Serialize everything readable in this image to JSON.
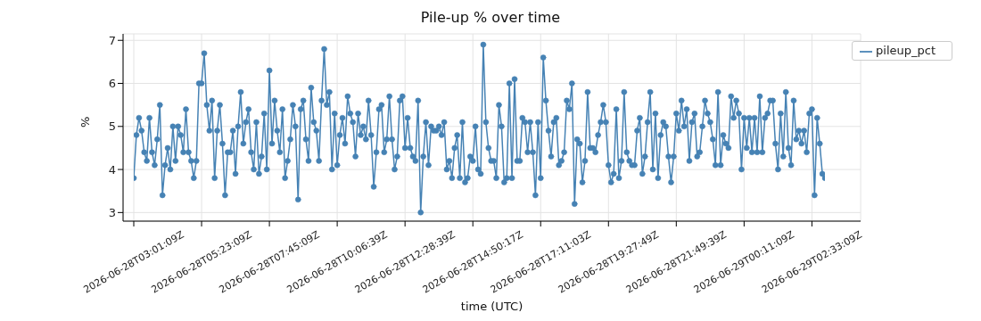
{
  "chart_data": {
    "type": "line",
    "title": "Pile-up % over time",
    "xlabel": "time (UTC)",
    "ylabel": "%",
    "categories": [
      "2026-06-28T03:01:09Z",
      null,
      null,
      null,
      null,
      null,
      null,
      null,
      null,
      null,
      null,
      null,
      null,
      null,
      null,
      null,
      null,
      null,
      null,
      null,
      null,
      null,
      null,
      null,
      null,
      null,
      "2026-06-28T05:23:09Z",
      null,
      null,
      null,
      null,
      null,
      null,
      null,
      null,
      null,
      null,
      null,
      null,
      null,
      null,
      null,
      null,
      null,
      null,
      null,
      null,
      null,
      null,
      null,
      null,
      null,
      "2026-06-28T07:45:09Z",
      null,
      null,
      null,
      null,
      null,
      null,
      null,
      null,
      null,
      null,
      null,
      null,
      null,
      null,
      null,
      null,
      null,
      null,
      null,
      null,
      null,
      null,
      null,
      null,
      null,
      "2026-06-28T10:06:39Z",
      null,
      null,
      null,
      null,
      null,
      null,
      null,
      null,
      null,
      null,
      null,
      null,
      null,
      null,
      null,
      null,
      null,
      null,
      null,
      null,
      null,
      null,
      null,
      null,
      null,
      "2026-06-28T12:28:39Z",
      null,
      null,
      null,
      null,
      null,
      null,
      null,
      null,
      null,
      null,
      null,
      null,
      null,
      null,
      null,
      null,
      null,
      null,
      null,
      null,
      null,
      null,
      null,
      null,
      null,
      "2026-06-28T14:50:17Z",
      null,
      null,
      null,
      null,
      null,
      null,
      null,
      null,
      null,
      null,
      null,
      null,
      null,
      null,
      null,
      null,
      null,
      null,
      null,
      null,
      null,
      null,
      null,
      null,
      null,
      "2026-06-28T17:11:03Z",
      null,
      null,
      null,
      null,
      null,
      null,
      null,
      null,
      null,
      null,
      null,
      null,
      null,
      null,
      null,
      null,
      null,
      null,
      null,
      null,
      null,
      null,
      null,
      null,
      null,
      "2026-06-28T19:27:49Z",
      null,
      null,
      null,
      null,
      null,
      null,
      null,
      null,
      null,
      null,
      null,
      null,
      null,
      null,
      null,
      null,
      null,
      null,
      null,
      null,
      null,
      null,
      null,
      null,
      null,
      "2026-06-28T21:49:39Z",
      null,
      null,
      null,
      null,
      null,
      null,
      null,
      null,
      null,
      null,
      null,
      null,
      null,
      null,
      null,
      null,
      null,
      null,
      null,
      null,
      null,
      null,
      null,
      null,
      null,
      "2026-06-29T00:11:09Z",
      null,
      null,
      null,
      null,
      null,
      null,
      null,
      null,
      null,
      null,
      null,
      null,
      null,
      null,
      null,
      null,
      null,
      null,
      null,
      null,
      null,
      null,
      null,
      null,
      null,
      "2026-06-29T02:33:09Z",
      null,
      null,
      null,
      null,
      null
    ],
    "series": [
      {
        "name": "pileup_pct",
        "color": "#4682b4",
        "values": [
          3.8,
          4.8,
          5.2,
          4.9,
          4.4,
          4.2,
          5.2,
          4.4,
          4.1,
          4.7,
          5.5,
          3.4,
          4.1,
          4.5,
          4.0,
          5.0,
          4.2,
          5.0,
          4.8,
          4.4,
          5.4,
          4.4,
          4.2,
          3.8,
          4.2,
          6.0,
          6.0,
          6.7,
          5.5,
          4.9,
          5.6,
          3.8,
          4.9,
          5.5,
          4.6,
          3.4,
          4.4,
          4.4,
          4.9,
          3.9,
          5.0,
          5.8,
          4.6,
          5.1,
          5.4,
          4.4,
          4.0,
          5.1,
          3.9,
          4.3,
          5.3,
          4.0,
          6.3,
          4.6,
          5.6,
          4.9,
          4.4,
          5.4,
          3.8,
          4.2,
          4.7,
          5.5,
          5.0,
          3.3,
          5.4,
          5.6,
          4.7,
          4.2,
          5.9,
          5.1,
          4.9,
          4.2,
          5.6,
          6.8,
          5.5,
          5.8,
          4.0,
          5.3,
          4.1,
          4.8,
          5.2,
          4.6,
          5.7,
          5.3,
          5.1,
          4.3,
          5.3,
          4.8,
          5.0,
          4.7,
          5.6,
          4.8,
          3.6,
          4.4,
          5.4,
          5.5,
          4.4,
          4.7,
          5.7,
          4.7,
          4.0,
          4.3,
          5.6,
          5.7,
          4.5,
          5.2,
          4.5,
          4.3,
          4.2,
          5.6,
          3.0,
          4.3,
          5.1,
          4.1,
          5.0,
          4.9,
          4.9,
          5.0,
          4.8,
          5.1,
          4.0,
          4.2,
          3.8,
          4.5,
          4.8,
          3.8,
          5.1,
          3.7,
          3.8,
          4.3,
          4.2,
          5.0,
          4.0,
          3.9,
          6.9,
          5.1,
          4.5,
          4.2,
          4.2,
          3.8,
          5.5,
          5.0,
          3.7,
          3.8,
          6.0,
          3.8,
          6.1,
          4.2,
          4.2,
          5.2,
          5.1,
          4.4,
          5.1,
          4.4,
          3.4,
          5.1,
          3.8,
          6.6,
          5.6,
          4.9,
          4.3,
          5.1,
          5.2,
          4.1,
          4.2,
          4.4,
          5.6,
          5.4,
          6.0,
          3.2,
          4.7,
          4.6,
          3.7,
          4.2,
          5.8,
          4.5,
          4.5,
          4.4,
          4.8,
          5.1,
          5.5,
          5.1,
          4.1,
          3.7,
          3.9,
          5.4,
          3.8,
          4.2,
          5.8,
          4.4,
          4.2,
          4.1,
          4.1,
          4.9,
          5.2,
          3.9,
          4.3,
          5.1,
          5.8,
          4.0,
          5.3,
          3.8,
          4.8,
          5.1,
          5.0,
          4.3,
          3.7,
          4.3,
          5.3,
          4.9,
          5.6,
          5.0,
          5.4,
          4.2,
          5.1,
          5.3,
          4.3,
          4.4,
          5.0,
          5.6,
          5.3,
          5.1,
          4.7,
          4.1,
          5.8,
          4.1,
          4.8,
          4.6,
          4.5,
          5.7,
          5.2,
          5.6,
          5.3,
          4.0,
          5.2,
          4.5,
          5.2,
          4.4,
          5.2,
          4.4,
          5.7,
          4.4,
          5.2,
          5.3,
          5.6,
          5.6,
          4.6,
          4.0,
          5.3,
          4.3,
          5.8,
          4.5,
          4.1,
          5.6,
          4.7,
          4.9,
          4.6,
          4.9,
          4.4,
          5.3,
          5.4,
          3.4,
          5.2,
          4.6,
          3.9,
          3.8
        ]
      }
    ],
    "ylim": [
      2.8,
      7.15
    ],
    "yticks": [
      3,
      4,
      5,
      6,
      7
    ],
    "grid": true,
    "legend": "top right",
    "marker": "circle",
    "line_style": "solid"
  }
}
